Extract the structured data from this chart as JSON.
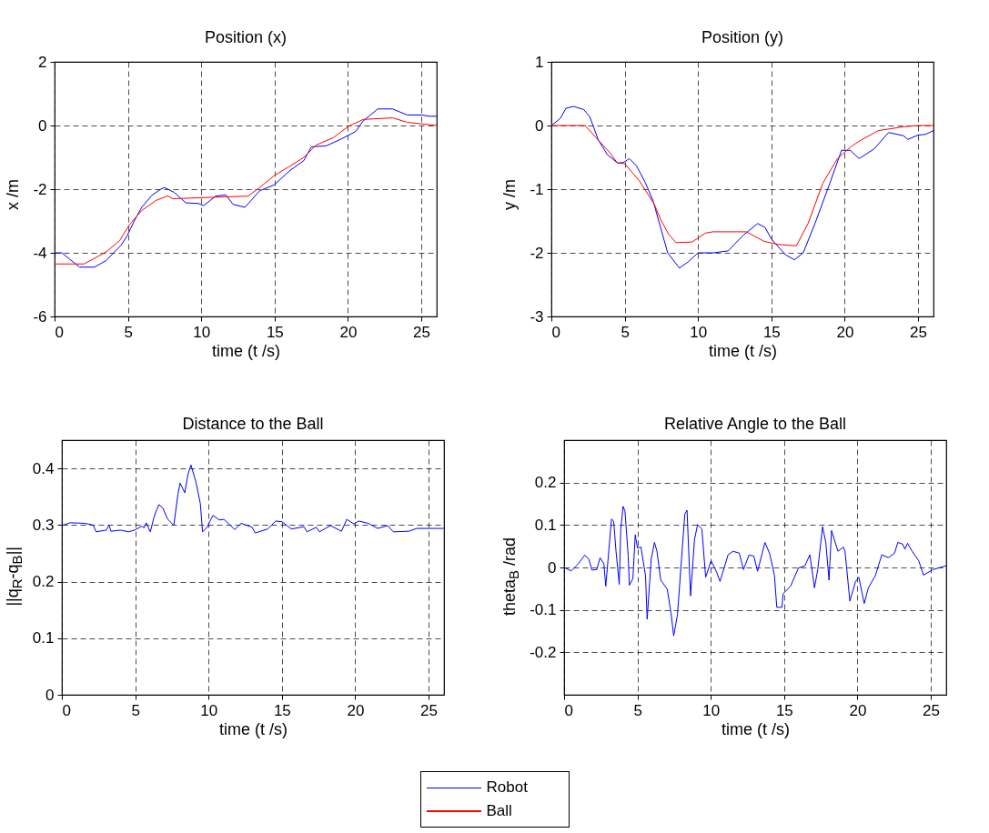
{
  "chart_data": [
    {
      "type": "line",
      "title": "Position (x)",
      "xlabel": "time (t /s)",
      "ylabel": "x /m",
      "xlim": [
        0,
        26.05
      ],
      "xticks": [
        0,
        5,
        10,
        15,
        20,
        25
      ],
      "ylim": [
        -6,
        2
      ],
      "yticks": [
        -6,
        -4,
        -2,
        0,
        2
      ],
      "grid": true,
      "legend": "bottom",
      "series": [
        {
          "name": "Robot",
          "color": "#0000ff",
          "x": [
            0,
            0.5,
            1.0,
            1.71,
            2.72,
            3.52,
            4.53,
            4.93,
            5.43,
            5.94,
            6.64,
            7.24,
            7.5,
            8.15,
            8.95,
            9.8,
            10.16,
            10.97,
            11.67,
            12.17,
            12.98,
            13.98,
            14.99,
            16.0,
            17.0,
            17.5,
            18.51,
            19.52,
            20.52,
            21.03,
            22.03,
            23.04,
            24.04,
            25.05,
            25.55,
            26.05
          ],
          "values": [
            -4.0,
            -4.0,
            -4.19,
            -4.45,
            -4.45,
            -4.24,
            -3.76,
            -3.48,
            -3.0,
            -2.57,
            -2.19,
            -2.0,
            -1.95,
            -2.1,
            -2.43,
            -2.45,
            -2.52,
            -2.22,
            -2.18,
            -2.48,
            -2.57,
            -2.05,
            -1.86,
            -1.43,
            -1.1,
            -0.67,
            -0.64,
            -0.43,
            -0.19,
            0.14,
            0.52,
            0.52,
            0.33,
            0.33,
            0.29,
            0.29
          ]
        },
        {
          "name": "Ball",
          "color": "#ff0000",
          "x": [
            0,
            2.01,
            3.52,
            4.43,
            5.13,
            5.94,
            6.94,
            7.71,
            8.05,
            11.77,
            13.18,
            13.98,
            14.99,
            16.0,
            17.0,
            17.81,
            19.01,
            20.02,
            21.03,
            23.04,
            24.04,
            25.05,
            26.05
          ],
          "values": [
            -4.35,
            -4.35,
            -3.97,
            -3.62,
            -3.1,
            -2.67,
            -2.35,
            -2.21,
            -2.3,
            -2.24,
            -2.22,
            -1.95,
            -1.57,
            -1.29,
            -1.0,
            -0.62,
            -0.38,
            -0.03,
            0.19,
            0.24,
            0.1,
            0.05,
            0.0
          ]
        }
      ]
    },
    {
      "type": "line",
      "title": "Position (y)",
      "xlabel": "time (t /s)",
      "ylabel": "y /m",
      "xlim": [
        0,
        26.05
      ],
      "xticks": [
        0,
        5,
        10,
        15,
        20,
        25
      ],
      "ylim": [
        -3,
        1
      ],
      "yticks": [
        -3,
        -2,
        -1,
        0,
        1
      ],
      "grid": true,
      "series": [
        {
          "color": "#0000ff",
          "x": [
            0,
            0.6,
            1.0,
            1.51,
            2.21,
            2.61,
            3.21,
            3.82,
            4.52,
            4.92,
            5.32,
            5.82,
            6.43,
            6.93,
            7.43,
            7.93,
            8.73,
            9.34,
            10.0,
            11.04,
            12.05,
            13.05,
            14.06,
            14.56,
            15.02,
            15.96,
            16.57,
            17.17,
            17.97,
            18.98,
            19.78,
            20.38,
            20.98,
            21.99,
            22.99,
            24.0,
            24.3,
            25.0,
            25.5,
            26.05
          ],
          "values": [
            0,
            0.11,
            0.27,
            0.3,
            0.25,
            0.14,
            -0.23,
            -0.46,
            -0.59,
            -0.58,
            -0.52,
            -0.64,
            -0.91,
            -1.18,
            -1.59,
            -2.0,
            -2.24,
            -2.14,
            -2.0,
            -2.0,
            -1.97,
            -1.73,
            -1.54,
            -1.6,
            -1.79,
            -2.03,
            -2.11,
            -2.0,
            -1.54,
            -0.91,
            -0.39,
            -0.39,
            -0.52,
            -0.37,
            -0.11,
            -0.16,
            -0.22,
            -0.15,
            -0.14,
            -0.08
          ]
        },
        {
          "color": "#ff0000",
          "x": [
            0,
            2.3,
            3.0,
            4.0,
            4.5,
            5.0,
            6.0,
            7.0,
            7.5,
            8.0,
            8.5,
            9.6,
            10.5,
            11.0,
            13.3,
            14.5,
            15.5,
            16.7,
            17.5,
            18.5,
            19.5,
            20.5,
            21.1,
            22.3,
            24.0,
            25.0,
            26.05
          ],
          "values": [
            0,
            0,
            -0.18,
            -0.43,
            -0.59,
            -0.6,
            -0.87,
            -1.23,
            -1.5,
            -1.71,
            -1.84,
            -1.83,
            -1.69,
            -1.67,
            -1.67,
            -1.82,
            -1.87,
            -1.89,
            -1.54,
            -0.91,
            -0.52,
            -0.32,
            -0.23,
            -0.08,
            -0.02,
            0,
            0
          ]
        }
      ]
    },
    {
      "type": "line",
      "title": "Distance to the Ball",
      "xlabel": "time (t /s)",
      "ylabel": "||q$_{R}$-q$_{B}$||",
      "xlim": [
        0,
        26.05
      ],
      "xticks": [
        0,
        5,
        10,
        15,
        20,
        25
      ],
      "ylim": [
        0,
        0.45
      ],
      "yticks": [
        0,
        0.1,
        0.2,
        0.3,
        0.4
      ],
      "grid": true,
      "series": [
        {
          "color": "#0000ff",
          "x": [
            0,
            0.58,
            1.54,
            2.14,
            2.33,
            3.03,
            3.21,
            3.35,
            4.0,
            4.53,
            4.96,
            5.45,
            5.6,
            5.75,
            6.03,
            6.28,
            6.45,
            6.62,
            6.88,
            7.2,
            7.63,
            7.91,
            8.06,
            8.38,
            8.59,
            8.8,
            9.12,
            9.44,
            9.59,
            9.87,
            10.3,
            10.73,
            11.05,
            11.79,
            12.22,
            12.97,
            13.18,
            14.04,
            14.57,
            15.0,
            15.64,
            16.5,
            16.71,
            17.35,
            17.56,
            18.31,
            19.06,
            19.42,
            19.91,
            20.24,
            20.88,
            21.52,
            22.22,
            22.59,
            23.65,
            24.19,
            26.0
          ],
          "values": [
            0.299,
            0.304,
            0.303,
            0.3,
            0.288,
            0.291,
            0.3,
            0.289,
            0.291,
            0.288,
            0.291,
            0.298,
            0.295,
            0.304,
            0.288,
            0.314,
            0.326,
            0.336,
            0.33,
            0.311,
            0.299,
            0.354,
            0.374,
            0.357,
            0.389,
            0.406,
            0.378,
            0.338,
            0.288,
            0.295,
            0.317,
            0.309,
            0.31,
            0.292,
            0.303,
            0.296,
            0.286,
            0.293,
            0.307,
            0.306,
            0.293,
            0.297,
            0.288,
            0.296,
            0.288,
            0.299,
            0.289,
            0.31,
            0.302,
            0.307,
            0.303,
            0.294,
            0.299,
            0.288,
            0.289,
            0.294,
            0.294
          ]
        }
      ]
    },
    {
      "type": "line",
      "title": "Relative Angle to the Ball",
      "xlabel": "time (t /s)",
      "ylabel": "theta$_{B}$ /rad",
      "xlim": [
        0,
        26.05
      ],
      "xticks": [
        0,
        5,
        10,
        15,
        20,
        25
      ],
      "ylim": [
        -0.3,
        0.3
      ],
      "yticks": [
        -0.2,
        -0.1,
        0,
        0.1,
        0.2
      ],
      "grid": true,
      "series": [
        {
          "color": "#0000ff",
          "x": [
            0,
            0.48,
            0.98,
            1.4,
            1.68,
            1.9,
            2.23,
            2.45,
            2.71,
            2.84,
            2.99,
            3.23,
            3.38,
            3.54,
            3.76,
            3.86,
            4.02,
            4.15,
            4.37,
            4.45,
            4.69,
            4.85,
            5.0,
            5.24,
            5.55,
            5.66,
            5.94,
            6.16,
            6.33,
            6.59,
            7.03,
            7.29,
            7.47,
            7.73,
            8.01,
            8.23,
            8.38,
            8.62,
            8.89,
            9.1,
            9.39,
            9.65,
            10.02,
            10.41,
            10.63,
            11.18,
            11.51,
            11.94,
            12.23,
            12.6,
            12.93,
            13.19,
            13.69,
            14.02,
            14.34,
            14.5,
            14.85,
            14.93,
            15.44,
            15.98,
            16.42,
            16.75,
            17.07,
            17.29,
            17.62,
            17.84,
            18.06,
            18.23,
            18.67,
            19.04,
            19.15,
            19.48,
            19.87,
            20.09,
            20.46,
            20.74,
            21.22,
            21.66,
            22.1,
            22.53,
            22.75,
            23.08,
            23.23,
            23.41,
            23.73,
            24.17,
            24.5,
            25.15,
            26.03
          ],
          "values": [
            0,
            -0.008,
            0.009,
            0.029,
            0.02,
            -0.006,
            -0.005,
            0.023,
            0.009,
            -0.044,
            0.016,
            0.114,
            0.109,
            0.038,
            -0.04,
            0.087,
            0.144,
            0.133,
            0.027,
            -0.042,
            -0.026,
            0.077,
            0.046,
            0.048,
            -0.019,
            -0.122,
            0.02,
            0.059,
            0.038,
            -0.03,
            -0.051,
            -0.108,
            -0.161,
            -0.111,
            0.023,
            0.126,
            0.135,
            -0.067,
            0.066,
            0.101,
            0.091,
            -0.023,
            0.016,
            -0.012,
            -0.033,
            0.03,
            0.038,
            0.034,
            -0.005,
            0.029,
            0.027,
            -0.009,
            0.059,
            0.032,
            -0.019,
            -0.094,
            -0.094,
            -0.062,
            -0.044,
            -0.001,
            0.004,
            0.03,
            -0.048,
            -0.005,
            0.096,
            0.059,
            -0.03,
            0.087,
            0.038,
            0.048,
            0.038,
            -0.079,
            -0.033,
            -0.023,
            -0.085,
            -0.048,
            -0.019,
            0.03,
            0.023,
            0.034,
            0.059,
            0.055,
            0.043,
            0.057,
            0.038,
            0.016,
            -0.018,
            -0.005,
            0.004
          ]
        }
      ]
    }
  ]
}
